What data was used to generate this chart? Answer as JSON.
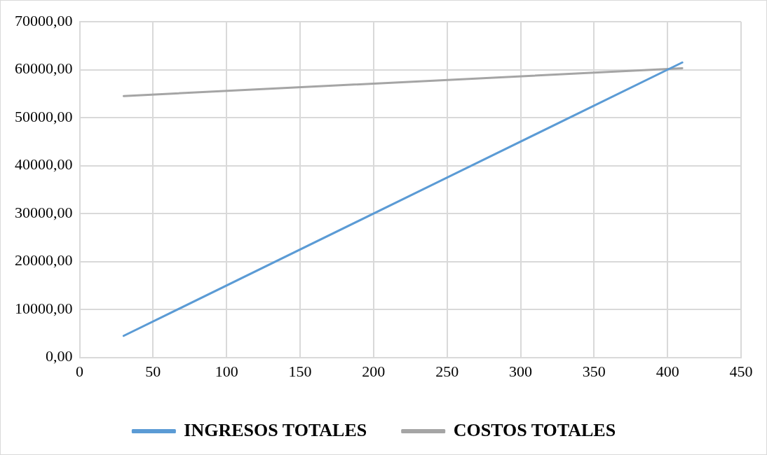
{
  "chart_data": {
    "type": "line",
    "x": [
      30,
      410
    ],
    "series": [
      {
        "name": "INGRESOS TOTALES",
        "color": "#5b9bd5",
        "values": [
          4500,
          61500
        ]
      },
      {
        "name": "COSTOS TOTALES",
        "color": "#a5a5a5",
        "values": [
          54500,
          60300
        ]
      }
    ],
    "xlim": [
      0,
      450
    ],
    "xticks": [
      0,
      50,
      100,
      150,
      200,
      250,
      300,
      350,
      400,
      450
    ],
    "ylim": [
      0,
      70000
    ],
    "yticks": [
      {
        "value": 0,
        "label": "0,00"
      },
      {
        "value": 10000,
        "label": "10000,00"
      },
      {
        "value": 20000,
        "label": "20000,00"
      },
      {
        "value": 30000,
        "label": "30000,00"
      },
      {
        "value": 40000,
        "label": "40000,00"
      },
      {
        "value": 50000,
        "label": "50000,00"
      },
      {
        "value": 60000,
        "label": "60000,00"
      },
      {
        "value": 70000,
        "label": "70000,00"
      }
    ],
    "grid": true,
    "legend": "bottom",
    "marker": "none",
    "line_style": "solid"
  }
}
